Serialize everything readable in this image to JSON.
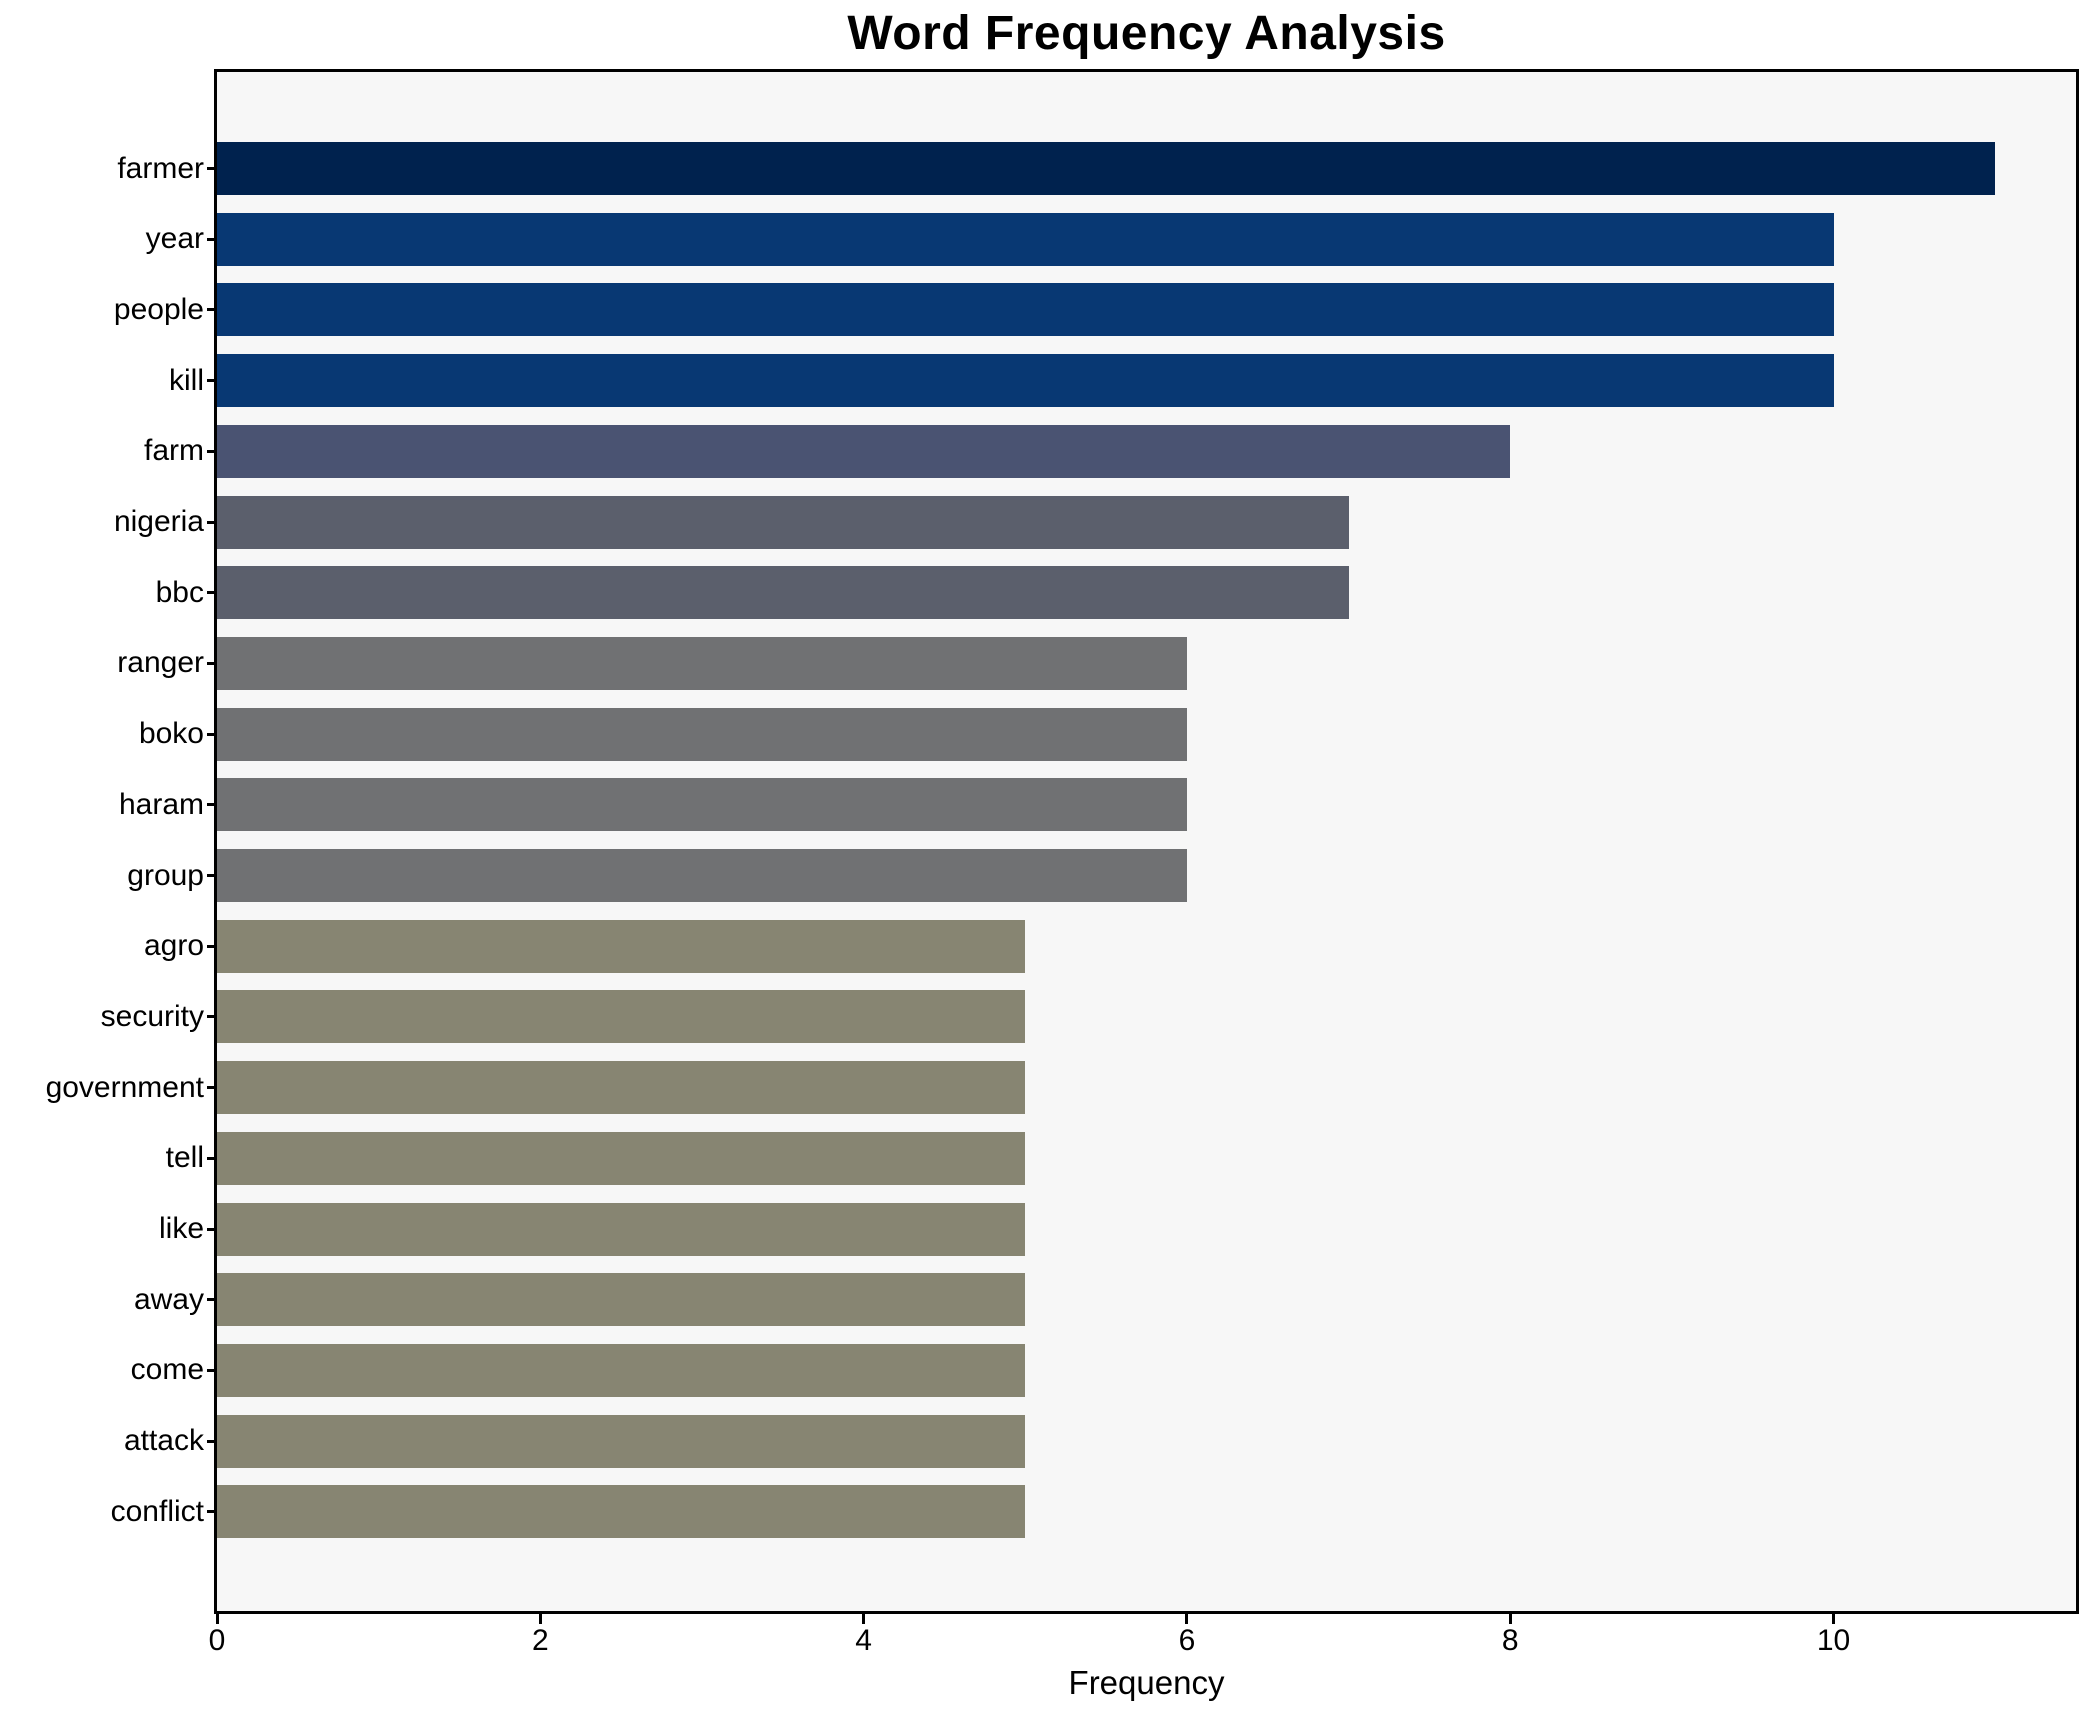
{
  "title": "Word Frequency Analysis",
  "xlabel": "Frequency",
  "chart_data": {
    "type": "bar",
    "orientation": "horizontal",
    "title": "Word Frequency Analysis",
    "xlabel": "Frequency",
    "ylabel": "",
    "categories": [
      "farmer",
      "year",
      "people",
      "kill",
      "farm",
      "nigeria",
      "bbc",
      "ranger",
      "boko",
      "haram",
      "group",
      "agro",
      "security",
      "government",
      "tell",
      "like",
      "away",
      "come",
      "attack",
      "conflict"
    ],
    "values": [
      11,
      10,
      10,
      10,
      8,
      7,
      7,
      6,
      6,
      6,
      6,
      5,
      5,
      5,
      5,
      5,
      5,
      5,
      5,
      5
    ],
    "bar_colors": [
      "#00224e",
      "#083873",
      "#083873",
      "#083873",
      "#4a5372",
      "#5b5f6c",
      "#5b5f6c",
      "#707173",
      "#707173",
      "#707173",
      "#707173",
      "#878572",
      "#878572",
      "#878572",
      "#878572",
      "#878572",
      "#878572",
      "#878572",
      "#878572",
      "#878572"
    ],
    "xlim": [
      0,
      11.5
    ],
    "xticks": [
      0,
      2,
      4,
      6,
      8,
      10
    ],
    "grid": false,
    "legend_position": "none",
    "plot_background": "#f7f7f7",
    "figure_background": "#ffffff",
    "spine_color": "#000000",
    "tick_color": "#000000"
  }
}
